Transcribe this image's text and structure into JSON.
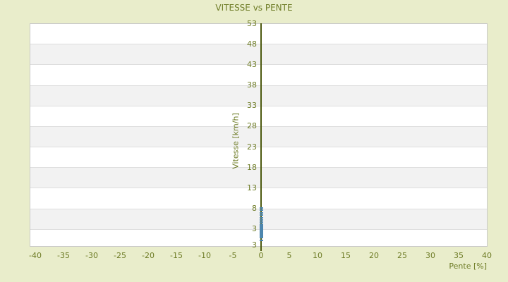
{
  "chart_data": {
    "type": "scatter",
    "title": "VITESSE vs PENTE",
    "xlabel": "Pente [%]",
    "ylabel": "Vitesse [km/h]",
    "x_ticks": [
      -40,
      -35,
      -30,
      -25,
      -20,
      -15,
      -10,
      -5,
      0,
      5,
      10,
      15,
      20,
      25,
      30,
      35,
      40
    ],
    "y_ticks": [
      53,
      48,
      43,
      38,
      33,
      28,
      23,
      18,
      13,
      8,
      3
    ],
    "y_axis_min_label": "3",
    "xlim": [
      -41,
      40.2
    ],
    "grid": "horizontal-bands-alternating",
    "legend": "none",
    "series": [
      {
        "name": "vitesse",
        "marker": "dash",
        "color": "#4d86ae",
        "points": [
          [
            0,
            8.1
          ],
          [
            0,
            7.5
          ],
          [
            0,
            6.9
          ],
          [
            0,
            6.3
          ],
          [
            0,
            5.7
          ],
          [
            0,
            5.1
          ],
          [
            0,
            4.6
          ],
          [
            0,
            4.2
          ],
          [
            0,
            3.9
          ],
          [
            0,
            3.6
          ],
          [
            0,
            3.3
          ],
          [
            0,
            3.0
          ],
          [
            0,
            2.7
          ],
          [
            0,
            2.4
          ],
          [
            0,
            2.1
          ],
          [
            0,
            1.8
          ],
          [
            0,
            1.5
          ],
          [
            0,
            1.2
          ],
          [
            0,
            0.9
          ],
          [
            0,
            0.2
          ]
        ]
      }
    ],
    "colors": {
      "background": "#e9edcb",
      "plot_background": "#ffffff",
      "band_gray": "#f2f2f2",
      "gridline": "#dedede",
      "border": "#c9c9c9",
      "axis_line": "#4d5a10",
      "text": "#6e7c26",
      "marker": "#4d86ae"
    }
  }
}
